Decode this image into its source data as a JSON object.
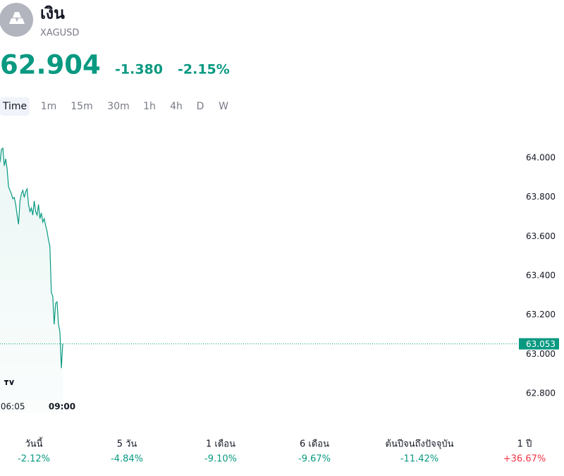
{
  "header": {
    "title": "เงิน",
    "symbol": "XAGUSD"
  },
  "quote": {
    "price": "62.904",
    "change": "-1.380",
    "change_percent": "-2.15%"
  },
  "tabs": [
    "Time",
    "1m",
    "15m",
    "30m",
    "1h",
    "4h",
    "D",
    "W"
  ],
  "chart_data": {
    "type": "line",
    "color": "#089981",
    "categories": [
      null,
      null,
      null,
      null,
      null,
      null,
      null,
      null,
      null,
      "06:05",
      null,
      null,
      null,
      null,
      null,
      null,
      null,
      null,
      null,
      null,
      null,
      null,
      null,
      null,
      null,
      null,
      null,
      null,
      null,
      null,
      null,
      null,
      null,
      null,
      null,
      null,
      null,
      null,
      null,
      null,
      null,
      null,
      null,
      null,
      "09:00"
    ],
    "values": [
      63.978,
      64.043,
      64.05,
      63.96,
      63.996,
      63.943,
      63.853,
      63.835,
      63.817,
      63.792,
      63.799,
      63.763,
      63.709,
      63.662,
      63.781,
      63.817,
      63.835,
      63.799,
      63.828,
      63.842,
      63.763,
      63.727,
      63.745,
      63.709,
      63.781,
      63.727,
      63.709,
      63.763,
      63.691,
      63.72,
      63.673,
      63.691,
      63.655,
      63.626,
      63.583,
      63.547,
      63.314,
      63.296,
      63.152,
      63.26,
      63.267,
      63.152,
      63.116,
      62.929,
      63.053
    ],
    "last_price": 63.053,
    "ylim": [
      62.7,
      64.1
    ],
    "yticks": [
      {
        "value": 62.8,
        "label": "62.800"
      },
      {
        "value": 63,
        "label": "63.000"
      },
      {
        "value": 63.2,
        "label": "63.200"
      },
      {
        "value": 63.4,
        "label": "63.400"
      },
      {
        "value": 63.6,
        "label": "63.600"
      },
      {
        "value": 63.8,
        "label": "63.800"
      },
      {
        "value": 64,
        "label": "64.000"
      }
    ]
  },
  "stats": [
    {
      "label": "วันนี้",
      "value": "-2.12%",
      "color": "#089981"
    },
    {
      "label": "5 วัน",
      "value": "-4.84%",
      "color": "#089981"
    },
    {
      "label": "1 เดือน",
      "value": "-9.10%",
      "color": "#089981"
    },
    {
      "label": "6 เดือน",
      "value": "-9.67%",
      "color": "#089981"
    },
    {
      "label": "ต้นปีจนถึงปัจจุบัน",
      "value": "-11.42%",
      "color": "#089981"
    },
    {
      "label": "1 ปี",
      "value": "+36.67%",
      "color": "#f23645"
    }
  ]
}
